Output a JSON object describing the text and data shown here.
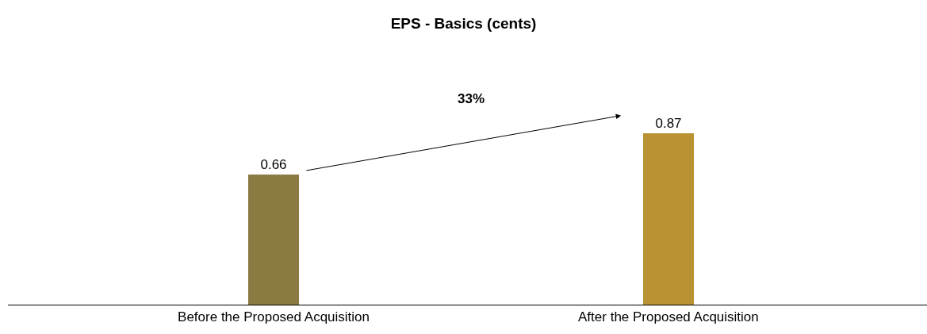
{
  "chart_data": {
    "type": "bar",
    "title": "EPS - Basics (cents)",
    "categories": [
      "Before the Proposed Acquisition",
      "After the Proposed Acquisition"
    ],
    "values": [
      0.66,
      0.87
    ],
    "colors": [
      "#8b7a42",
      "#b89233"
    ],
    "data_labels": true,
    "annotations": [
      "33%"
    ],
    "legend": false
  }
}
